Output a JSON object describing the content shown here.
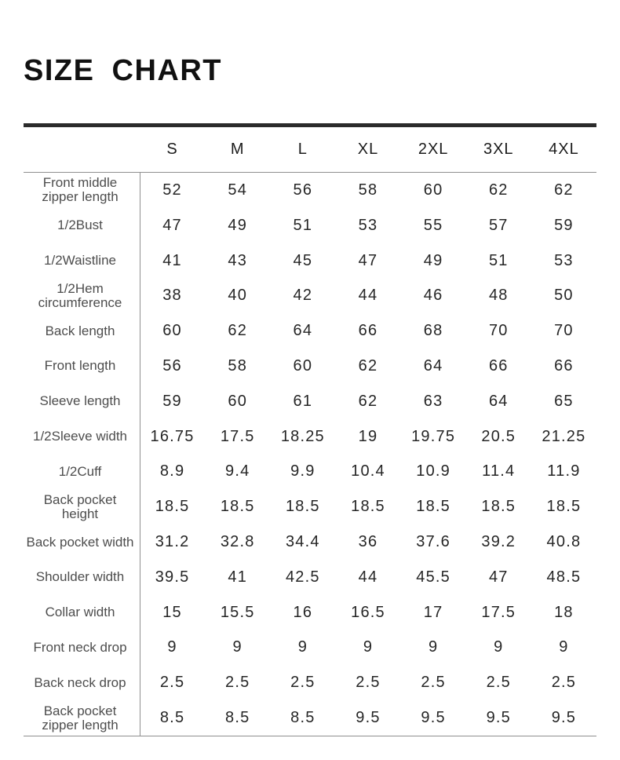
{
  "page_title": "SIZE CHART",
  "colors": {
    "heavy_rule": "#2b2b2b",
    "light_rule": "#8f8f8f",
    "header_text": "#1c1c1c",
    "label_text": "#4d4d4d",
    "value_text": "#262626",
    "background": "#ffffff"
  },
  "chart_data": {
    "type": "table",
    "title": "SIZE CHART",
    "columns": [
      "S",
      "M",
      "L",
      "XL",
      "2XL",
      "3XL",
      "4XL"
    ],
    "rows": [
      {
        "label": "Front middle zipper length",
        "values": [
          "52",
          "54",
          "56",
          "58",
          "60",
          "62",
          "62"
        ]
      },
      {
        "label": "1/2Bust",
        "values": [
          "47",
          "49",
          "51",
          "53",
          "55",
          "57",
          "59"
        ]
      },
      {
        "label": "1/2Waistline",
        "values": [
          "41",
          "43",
          "45",
          "47",
          "49",
          "51",
          "53"
        ]
      },
      {
        "label": "1/2Hem circumference",
        "values": [
          "38",
          "40",
          "42",
          "44",
          "46",
          "48",
          "50"
        ]
      },
      {
        "label": "Back length",
        "values": [
          "60",
          "62",
          "64",
          "66",
          "68",
          "70",
          "70"
        ]
      },
      {
        "label": "Front length",
        "values": [
          "56",
          "58",
          "60",
          "62",
          "64",
          "66",
          "66"
        ]
      },
      {
        "label": "Sleeve length",
        "values": [
          "59",
          "60",
          "61",
          "62",
          "63",
          "64",
          "65"
        ]
      },
      {
        "label": "1/2Sleeve width",
        "values": [
          "16.75",
          "17.5",
          "18.25",
          "19",
          "19.75",
          "20.5",
          "21.25"
        ]
      },
      {
        "label": "1/2Cuff",
        "values": [
          "8.9",
          "9.4",
          "9.9",
          "10.4",
          "10.9",
          "11.4",
          "11.9"
        ]
      },
      {
        "label": "Back pocket height",
        "values": [
          "18.5",
          "18.5",
          "18.5",
          "18.5",
          "18.5",
          "18.5",
          "18.5"
        ]
      },
      {
        "label": "Back pocket width",
        "values": [
          "31.2",
          "32.8",
          "34.4",
          "36",
          "37.6",
          "39.2",
          "40.8"
        ]
      },
      {
        "label": "Shoulder width",
        "values": [
          "39.5",
          "41",
          "42.5",
          "44",
          "45.5",
          "47",
          "48.5"
        ]
      },
      {
        "label": "Collar width",
        "values": [
          "15",
          "15.5",
          "16",
          "16.5",
          "17",
          "17.5",
          "18"
        ]
      },
      {
        "label": "Front neck drop",
        "values": [
          "9",
          "9",
          "9",
          "9",
          "9",
          "9",
          "9"
        ]
      },
      {
        "label": "Back neck drop",
        "values": [
          "2.5",
          "2.5",
          "2.5",
          "2.5",
          "2.5",
          "2.5",
          "2.5"
        ]
      },
      {
        "label": "Back pocket zipper length",
        "values": [
          "8.5",
          "8.5",
          "8.5",
          "9.5",
          "9.5",
          "9.5",
          "9.5"
        ]
      }
    ]
  }
}
